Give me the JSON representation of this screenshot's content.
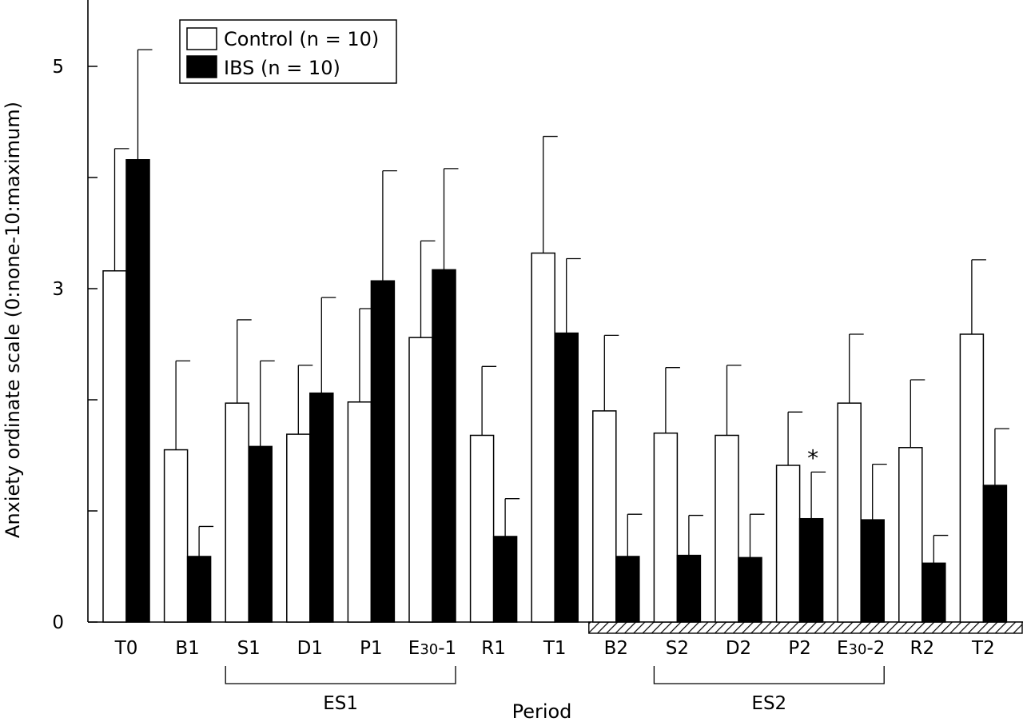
{
  "chart_data": {
    "type": "bar",
    "xlabel": "Period",
    "ylabel": "Anxiety ordinate scale (0:none-10:maximum)",
    "ylim": [
      0,
      5.5
    ],
    "yticks": [
      "0",
      "3",
      "5"
    ],
    "categories": [
      "T0",
      "B1",
      "S1",
      "D1",
      "P1",
      "E30-1",
      "R1",
      "T1",
      "B2",
      "S2",
      "D2",
      "P2",
      "E30-2",
      "R2",
      "T2"
    ],
    "category_labels": [
      {
        "main": "T0",
        "sub": "",
        "tail": ""
      },
      {
        "main": "B1",
        "sub": "",
        "tail": ""
      },
      {
        "main": "S1",
        "sub": "",
        "tail": ""
      },
      {
        "main": "D1",
        "sub": "",
        "tail": ""
      },
      {
        "main": "P1",
        "sub": "",
        "tail": ""
      },
      {
        "main": "E",
        "sub": "30",
        "tail": "-1"
      },
      {
        "main": "R1",
        "sub": "",
        "tail": ""
      },
      {
        "main": "T1",
        "sub": "",
        "tail": ""
      },
      {
        "main": "B2",
        "sub": "",
        "tail": ""
      },
      {
        "main": "S2",
        "sub": "",
        "tail": ""
      },
      {
        "main": "D2",
        "sub": "",
        "tail": ""
      },
      {
        "main": "P2",
        "sub": "",
        "tail": ""
      },
      {
        "main": "E",
        "sub": "30",
        "tail": "-2"
      },
      {
        "main": "R2",
        "sub": "",
        "tail": ""
      },
      {
        "main": "T2",
        "sub": "",
        "tail": ""
      }
    ],
    "series": [
      {
        "name": "Control (n = 10)",
        "color": "#ffffff",
        "values": [
          3.16,
          1.55,
          1.97,
          1.69,
          1.98,
          2.56,
          1.68,
          3.32,
          1.9,
          1.7,
          1.68,
          1.41,
          1.97,
          1.57,
          2.59
        ],
        "errors": [
          1.1,
          0.8,
          0.75,
          0.62,
          0.84,
          0.87,
          0.62,
          1.05,
          0.68,
          0.59,
          0.63,
          0.48,
          0.62,
          0.61,
          0.67
        ]
      },
      {
        "name": "IBS (n = 10)",
        "color": "#000000",
        "values": [
          4.16,
          0.59,
          1.58,
          2.06,
          3.07,
          3.17,
          0.77,
          2.6,
          0.59,
          0.6,
          0.58,
          0.93,
          0.92,
          0.53,
          1.23
        ],
        "errors": [
          0.99,
          0.27,
          0.77,
          0.86,
          0.99,
          0.91,
          0.34,
          0.67,
          0.38,
          0.36,
          0.39,
          0.42,
          0.5,
          0.25,
          0.51
        ]
      }
    ],
    "groups": [
      {
        "label": "ES1",
        "from": "S1",
        "to": "E30-1"
      },
      {
        "label": "ES2",
        "from": "S2",
        "to": "E30-2"
      }
    ],
    "annotations": [
      {
        "text": "*",
        "category": "P2",
        "series": "IBS (n = 10)"
      }
    ],
    "hatched_axis_from": "B2",
    "legend_position": "top-left",
    "grid": false
  }
}
